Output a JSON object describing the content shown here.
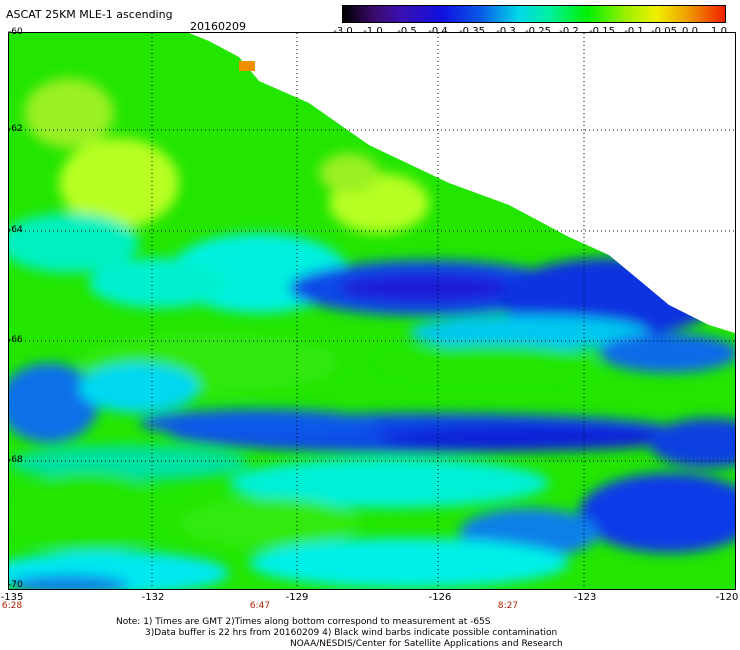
{
  "header": {
    "title": "ASCAT 25KM MLE-1 ascending",
    "date": "20160209"
  },
  "colorbar": {
    "labels": [
      "-3.0",
      "-1.0",
      "-0.5",
      "-0.4",
      "-0.35",
      "-0.3",
      "-0.25",
      "-0.2",
      "-0.15",
      "-0.1",
      "-0.05",
      "0.0",
      "1.0"
    ]
  },
  "axes": {
    "y_labels": [
      "-60",
      "-62",
      "-64",
      "-66",
      "-68",
      "-70"
    ],
    "x_labels": [
      "-135",
      "-132",
      "-129",
      "-126",
      "-123",
      "-120"
    ],
    "times": [
      "6:28",
      "6:47",
      "8:27"
    ]
  },
  "notes": {
    "line1": "Note: 1) Times are GMT 2)Times along bottom correspond to measurement at -65S",
    "line2": "3)Data buffer is 22 hrs from 20160209 4) Black wind barbs indicate possible contamination",
    "line3": "NOAA/NESDIS/Center for Satellite Applications and Research"
  },
  "colors": {
    "green": "#22e600",
    "cyan": "#00f0e0",
    "blue": "#0a2ee8",
    "yellowgreen": "#b8ff20"
  }
}
